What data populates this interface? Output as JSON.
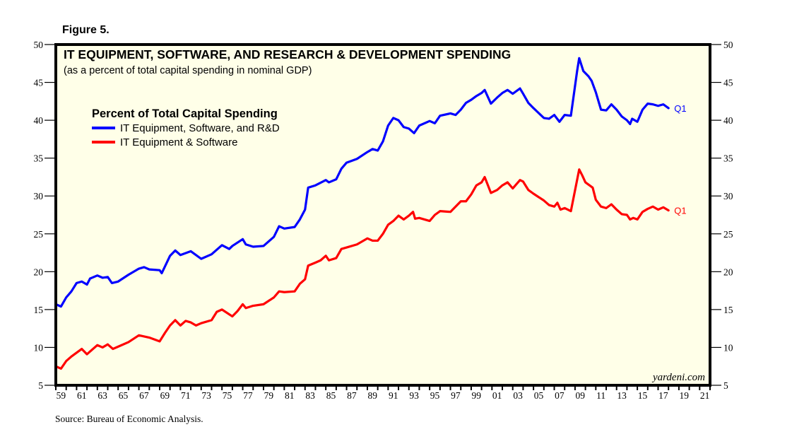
{
  "figure_label": "Figure 5.",
  "source_note": "Source: Bureau of Economic Analysis.",
  "watermark": "yardeni.com",
  "colors": {
    "background": "#ffffe8",
    "series_blue": "#0000ff",
    "series_red": "#ff0000",
    "frame": "#000000"
  },
  "chart_data": {
    "type": "line",
    "title": "IT EQUIPMENT, SOFTWARE, AND RESEARCH & DEVELOPMENT SPENDING",
    "subtitle": "(as a percent of total capital spending in nominal GDP)",
    "legend_title": "Percent of Total Capital Spending",
    "legend_position": "top-left",
    "xlabel": "",
    "ylabel": "",
    "xlim": [
      1959,
      2022
    ],
    "ylim": [
      5,
      50
    ],
    "grid": false,
    "y_ticks": [
      5,
      10,
      15,
      20,
      25,
      30,
      35,
      40,
      45,
      50
    ],
    "y_tick_labels": [
      "5",
      "10",
      "15",
      "20",
      "25",
      "30",
      "35",
      "40",
      "45",
      "50"
    ],
    "x_ticks": [
      1959,
      1961,
      1963,
      1965,
      1967,
      1969,
      1971,
      1973,
      1975,
      1977,
      1979,
      1981,
      1983,
      1985,
      1987,
      1989,
      1991,
      1993,
      1995,
      1997,
      1999,
      2001,
      2003,
      2005,
      2007,
      2009,
      2011,
      2013,
      2015,
      2017,
      2019,
      2021
    ],
    "x_tick_labels": [
      "59",
      "61",
      "63",
      "65",
      "67",
      "69",
      "71",
      "73",
      "75",
      "77",
      "79",
      "81",
      "83",
      "85",
      "87",
      "89",
      "91",
      "93",
      "95",
      "97",
      "99",
      "01",
      "03",
      "05",
      "07",
      "09",
      "11",
      "13",
      "15",
      "17",
      "19",
      "21"
    ],
    "series": [
      {
        "name": "IT Equipment, Software, and R&D",
        "color": "#0000ff",
        "end_label": "Q1",
        "x": [
          1959.0,
          1959.5,
          1960.0,
          1960.5,
          1961.0,
          1961.5,
          1962.0,
          1962.3,
          1963.0,
          1963.5,
          1964.0,
          1964.4,
          1965.0,
          1966.0,
          1967.0,
          1967.5,
          1968.0,
          1969.0,
          1969.2,
          1970.0,
          1970.5,
          1971.0,
          1972.0,
          1973.0,
          1974.0,
          1975.0,
          1975.7,
          1976.0,
          1977.0,
          1977.3,
          1978.0,
          1979.0,
          1980.0,
          1980.5,
          1981.0,
          1982.0,
          1982.5,
          1983.0,
          1983.3,
          1984.0,
          1985.0,
          1985.3,
          1986.0,
          1986.5,
          1987.0,
          1988.0,
          1989.0,
          1989.5,
          1990.0,
          1990.5,
          1991.0,
          1991.5,
          1992.0,
          1992.5,
          1993.0,
          1993.5,
          1994.0,
          1995.0,
          1995.5,
          1996.0,
          1997.0,
          1997.5,
          1998.0,
          1998.5,
          1999.0,
          1999.5,
          2000.0,
          2000.3,
          2000.9,
          2001.5,
          2002.0,
          2002.5,
          2003.0,
          2003.7,
          2004.0,
          2004.5,
          2005.0,
          2006.0,
          2006.5,
          2007.0,
          2007.5,
          2008.0,
          2008.6,
          2009.2,
          2009.4,
          2009.8,
          2010.3,
          2010.6,
          2011.0,
          2011.5,
          2012.0,
          2012.5,
          2013.0,
          2013.5,
          2014.0,
          2014.3,
          2014.5,
          2015.0,
          2015.5,
          2016.0,
          2016.5,
          2017.0,
          2017.5,
          2018.0
        ],
        "values": [
          15.7,
          15.4,
          16.6,
          17.4,
          18.5,
          18.7,
          18.3,
          19.1,
          19.5,
          19.2,
          19.3,
          18.5,
          18.7,
          19.6,
          20.4,
          20.6,
          20.3,
          20.2,
          19.8,
          22.1,
          22.8,
          22.2,
          22.7,
          21.7,
          22.3,
          23.5,
          23.0,
          23.4,
          24.3,
          23.6,
          23.3,
          23.4,
          24.6,
          26.0,
          25.7,
          25.9,
          26.9,
          28.2,
          31.1,
          31.4,
          32.1,
          31.8,
          32.2,
          33.6,
          34.4,
          34.9,
          35.8,
          36.2,
          36.0,
          37.2,
          39.3,
          40.3,
          40.0,
          39.1,
          38.9,
          38.3,
          39.3,
          39.9,
          39.6,
          40.6,
          40.9,
          40.7,
          41.4,
          42.3,
          42.7,
          43.2,
          43.6,
          44.0,
          42.2,
          43.0,
          43.6,
          44.0,
          43.5,
          44.2,
          43.5,
          42.3,
          41.6,
          40.3,
          40.2,
          40.7,
          39.8,
          40.7,
          40.6,
          46.5,
          48.2,
          46.5,
          45.8,
          45.2,
          43.7,
          41.4,
          41.3,
          42.1,
          41.4,
          40.5,
          40.0,
          39.5,
          40.2,
          39.8,
          41.4,
          42.2,
          42.1,
          41.9,
          42.1,
          41.6
        ]
      },
      {
        "name": "IT Equipment & Software",
        "color": "#ff0000",
        "end_label": "Q1",
        "x": [
          1959.0,
          1959.5,
          1960.0,
          1960.5,
          1961.0,
          1961.5,
          1962.0,
          1963.0,
          1963.5,
          1964.0,
          1964.5,
          1965.0,
          1966.0,
          1967.0,
          1968.0,
          1969.0,
          1969.5,
          1970.0,
          1970.5,
          1971.0,
          1971.5,
          1972.0,
          1972.5,
          1973.0,
          1974.0,
          1974.5,
          1975.0,
          1976.0,
          1976.5,
          1977.0,
          1977.3,
          1978.0,
          1979.0,
          1980.0,
          1980.5,
          1981.0,
          1982.0,
          1982.5,
          1983.0,
          1983.3,
          1984.0,
          1984.5,
          1985.0,
          1985.3,
          1986.0,
          1986.5,
          1987.0,
          1988.0,
          1989.0,
          1989.5,
          1990.0,
          1990.5,
          1991.0,
          1991.5,
          1992.0,
          1992.5,
          1993.0,
          1993.4,
          1993.6,
          1994.0,
          1995.0,
          1995.5,
          1996.0,
          1997.0,
          1997.5,
          1998.0,
          1998.5,
          1999.0,
          1999.5,
          2000.0,
          2000.3,
          2000.9,
          2001.5,
          2002.0,
          2002.5,
          2003.0,
          2003.7,
          2004.0,
          2004.5,
          2005.0,
          2006.0,
          2006.5,
          2007.0,
          2007.3,
          2007.6,
          2008.0,
          2008.6,
          2009.4,
          2009.7,
          2010.0,
          2010.7,
          2011.0,
          2011.5,
          2012.0,
          2012.5,
          2013.0,
          2013.5,
          2014.0,
          2014.3,
          2014.6,
          2015.0,
          2015.5,
          2016.0,
          2016.5,
          2017.0,
          2017.5,
          2018.0
        ],
        "values": [
          7.5,
          7.2,
          8.2,
          8.8,
          9.3,
          9.8,
          9.1,
          10.3,
          10.0,
          10.4,
          9.8,
          10.1,
          10.7,
          11.6,
          11.3,
          10.8,
          11.9,
          12.9,
          13.6,
          12.9,
          13.5,
          13.3,
          12.9,
          13.2,
          13.6,
          14.7,
          15.0,
          14.1,
          14.8,
          15.7,
          15.2,
          15.5,
          15.7,
          16.6,
          17.4,
          17.3,
          17.4,
          18.4,
          19.0,
          20.8,
          21.2,
          21.5,
          22.1,
          21.5,
          21.8,
          23.0,
          23.2,
          23.6,
          24.4,
          24.1,
          24.1,
          25.0,
          26.2,
          26.7,
          27.4,
          26.9,
          27.4,
          27.9,
          27.0,
          27.1,
          26.7,
          27.5,
          28.0,
          27.9,
          28.6,
          29.3,
          29.3,
          30.2,
          31.4,
          31.8,
          32.5,
          30.4,
          30.8,
          31.4,
          31.8,
          31.0,
          32.1,
          31.9,
          30.8,
          30.3,
          29.4,
          28.8,
          28.6,
          29.1,
          28.2,
          28.4,
          28.0,
          33.5,
          32.7,
          31.8,
          31.1,
          29.5,
          28.6,
          28.4,
          28.9,
          28.2,
          27.6,
          27.5,
          26.9,
          27.1,
          26.9,
          27.9,
          28.3,
          28.6,
          28.2,
          28.5,
          28.1
        ]
      }
    ]
  }
}
